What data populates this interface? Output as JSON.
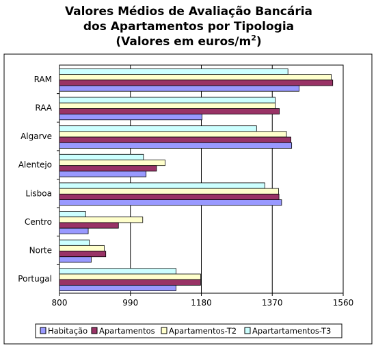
{
  "chart_data": {
    "type": "bar",
    "orientation": "horizontal",
    "title_lines": [
      "Valores Médios de Avaliação Bancária",
      "dos Apartamentos por Tipologia",
      "(Valores em euros/m"
    ],
    "title_superscript": "2",
    "title_close": ")",
    "categories": [
      "RAM",
      "RAA",
      "Algarve",
      "Alentejo",
      "Lisboa",
      "Centro",
      "Norte",
      "Portugal"
    ],
    "x_ticks": [
      "800",
      "990",
      "1180",
      "1370",
      "1560"
    ],
    "xlim": [
      800,
      1560
    ],
    "grid": true,
    "legend_position": "bottom",
    "series": [
      {
        "name": "Habitação",
        "color": "#9999FF",
        "values": [
          1442,
          1182,
          1422,
          1032,
          1395,
          877,
          885,
          1112
        ]
      },
      {
        "name": "Apartamentos",
        "color": "#993366",
        "values": [
          1532,
          1389,
          1420,
          1060,
          1388,
          958,
          924,
          1178
        ]
      },
      {
        "name": "Apartamentos-T2",
        "color": "#FFFFCC",
        "values": [
          1528,
          1378,
          1408,
          1083,
          1387,
          1023,
          920,
          1178
        ]
      },
      {
        "name": "Apartartamentos-T3",
        "color": "#CCFFFF",
        "values": [
          1412,
          1378,
          1328,
          1025,
          1350,
          870,
          880,
          1112
        ]
      }
    ]
  }
}
